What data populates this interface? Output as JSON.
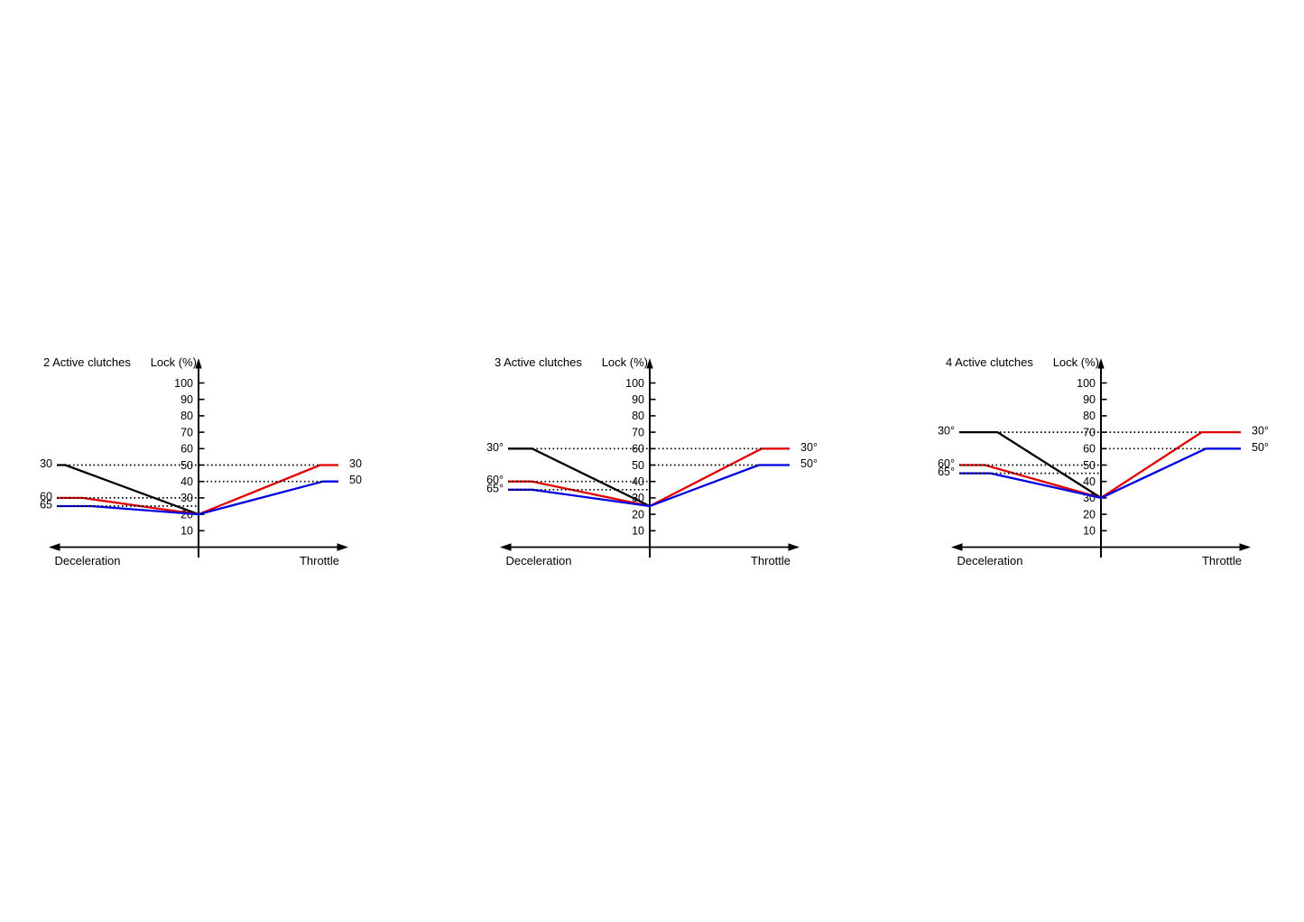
{
  "page": {
    "background": "#ffffff"
  },
  "chart_data": [
    {
      "type": "line",
      "title": "2 Active clutches",
      "ylabel": "Lock (%)",
      "xlabel_left": "Deceleration",
      "xlabel_right": "Throttle",
      "yticks": [
        10,
        20,
        30,
        40,
        50,
        60,
        70,
        80,
        90,
        100
      ],
      "ylim": [
        0,
        105
      ],
      "x_range": [
        -1,
        1
      ],
      "grid": "dotted-guides-only",
      "series": [
        {
          "name": "black",
          "color": "#000000",
          "label_left": "30",
          "points": [
            [
              -1,
              50
            ],
            [
              -0.94,
              50
            ],
            [
              0,
              20
            ]
          ]
        },
        {
          "name": "red",
          "color": "#e00000",
          "label_left": "60",
          "label_right": "30",
          "points": [
            [
              -1,
              30
            ],
            [
              -0.82,
              30
            ],
            [
              0,
              20
            ],
            [
              0.87,
              50
            ],
            [
              1,
              50
            ]
          ]
        },
        {
          "name": "blue",
          "color": "#0000e0",
          "label_left": "65",
          "label_right": "50",
          "points": [
            [
              -1,
              25
            ],
            [
              -0.76,
              25
            ],
            [
              0,
              20
            ],
            [
              0.89,
              40
            ],
            [
              1,
              40
            ]
          ]
        }
      ],
      "guides": [
        {
          "value": 50,
          "x1": -1,
          "x2": 0.87
        },
        {
          "value": 40,
          "x1": 0,
          "x2": 0.89
        },
        {
          "value": 30,
          "x1": -1,
          "x2": 0
        },
        {
          "value": 25,
          "x1": -1,
          "x2": 0
        }
      ]
    },
    {
      "type": "line",
      "title": "3 Active clutches",
      "ylabel": "Lock (%)",
      "xlabel_left": "Deceleration",
      "xlabel_right": "Throttle",
      "yticks": [
        10,
        20,
        30,
        40,
        50,
        60,
        70,
        80,
        90,
        100
      ],
      "ylim": [
        0,
        105
      ],
      "x_range": [
        -1,
        1
      ],
      "grid": "dotted-guides-only",
      "series": [
        {
          "name": "black",
          "color": "#000000",
          "label_left": "30°",
          "points": [
            [
              -1,
              60
            ],
            [
              -0.83,
              60
            ],
            [
              0,
              25
            ]
          ]
        },
        {
          "name": "red",
          "color": "#e00000",
          "label_left": "60°",
          "label_right": "30°",
          "points": [
            [
              -1,
              40
            ],
            [
              -0.83,
              40
            ],
            [
              0,
              25
            ],
            [
              0.8,
              60
            ],
            [
              1,
              60
            ]
          ]
        },
        {
          "name": "blue",
          "color": "#0000e0",
          "label_left": "65°",
          "label_right": "50°",
          "points": [
            [
              -1,
              35
            ],
            [
              -0.83,
              35
            ],
            [
              0,
              25
            ],
            [
              0.78,
              50
            ],
            [
              1,
              50
            ]
          ]
        }
      ],
      "guides": [
        {
          "value": 60,
          "x1": -1,
          "x2": 0.8
        },
        {
          "value": 50,
          "x1": 0,
          "x2": 0.78
        },
        {
          "value": 40,
          "x1": -1,
          "x2": 0
        },
        {
          "value": 35,
          "x1": -1,
          "x2": 0
        }
      ]
    },
    {
      "type": "line",
      "title": "4 Active clutches",
      "ylabel": "Lock (%)",
      "xlabel_left": "Deceleration",
      "xlabel_right": "Throttle",
      "yticks": [
        10,
        20,
        30,
        40,
        50,
        60,
        70,
        80,
        90,
        100
      ],
      "ylim": [
        0,
        105
      ],
      "x_range": [
        -1,
        1
      ],
      "grid": "dotted-guides-only",
      "series": [
        {
          "name": "black",
          "color": "#000000",
          "label_left": "30°",
          "points": [
            [
              -1,
              70
            ],
            [
              -0.73,
              70
            ],
            [
              0,
              30
            ]
          ]
        },
        {
          "name": "red",
          "color": "#e00000",
          "label_left": "60°",
          "label_right": "30°",
          "points": [
            [
              -1,
              50
            ],
            [
              -0.82,
              50
            ],
            [
              0,
              30
            ],
            [
              0.72,
              70
            ],
            [
              1,
              70
            ]
          ]
        },
        {
          "name": "blue",
          "color": "#0000e0",
          "label_left": "65°",
          "label_right": "50°",
          "points": [
            [
              -1,
              45
            ],
            [
              -0.78,
              45
            ],
            [
              0,
              30
            ],
            [
              0.75,
              60
            ],
            [
              1,
              60
            ]
          ]
        }
      ],
      "guides": [
        {
          "value": 70,
          "x1": -1,
          "x2": 0.72
        },
        {
          "value": 60,
          "x1": 0,
          "x2": 0.75
        },
        {
          "value": 50,
          "x1": -1,
          "x2": 0
        },
        {
          "value": 45,
          "x1": -1,
          "x2": 0
        }
      ]
    }
  ]
}
